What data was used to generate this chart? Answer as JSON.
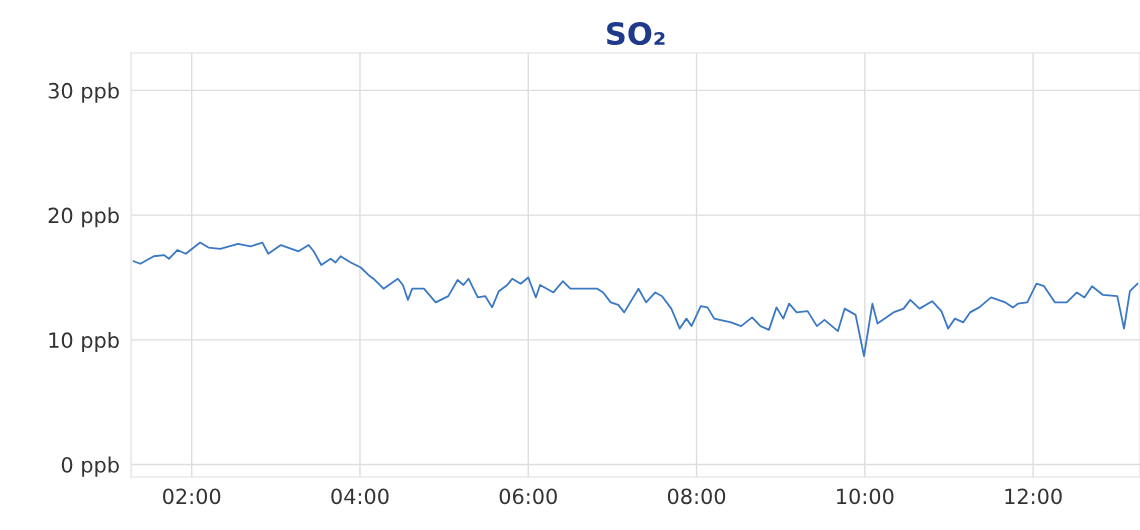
{
  "chart_data": {
    "type": "line",
    "title": "SO₂",
    "x": [
      1.31,
      1.39,
      1.55,
      1.67,
      1.73,
      1.83,
      1.93,
      2.1,
      2.2,
      2.34,
      2.55,
      2.7,
      2.84,
      2.91,
      3.06,
      3.27,
      3.39,
      3.45,
      3.54,
      3.65,
      3.71,
      3.77,
      3.89,
      4.01,
      4.1,
      4.16,
      4.28,
      4.45,
      4.51,
      4.57,
      4.62,
      4.76,
      4.9,
      5.05,
      5.16,
      5.23,
      5.29,
      5.4,
      5.49,
      5.57,
      5.65,
      5.75,
      5.81,
      5.91,
      6.0,
      6.09,
      6.14,
      6.3,
      6.41,
      6.5,
      6.66,
      6.82,
      6.89,
      6.98,
      7.07,
      7.14,
      7.31,
      7.4,
      7.51,
      7.59,
      7.7,
      7.8,
      7.88,
      7.94,
      8.05,
      8.13,
      8.21,
      8.41,
      8.53,
      8.66,
      8.76,
      8.86,
      8.95,
      9.03,
      9.1,
      9.19,
      9.32,
      9.43,
      9.52,
      9.68,
      9.76,
      9.89,
      9.99,
      10.09,
      10.15,
      10.34,
      10.46,
      10.54,
      10.65,
      10.8,
      10.91,
      10.99,
      11.07,
      11.17,
      11.25,
      11.36,
      11.5,
      11.67,
      11.76,
      11.82,
      11.93,
      12.04,
      12.13,
      12.26,
      12.4,
      12.52,
      12.61,
      12.7,
      12.83,
      13.0,
      13.08,
      13.15,
      13.24
    ],
    "series": [
      {
        "color": "#3a78c4",
        "values": [
          16.3,
          16.1,
          16.7,
          16.8,
          16.5,
          17.2,
          16.9,
          17.8,
          17.4,
          17.3,
          17.7,
          17.5,
          17.8,
          16.9,
          17.6,
          17.1,
          17.6,
          17.1,
          16.0,
          16.5,
          16.2,
          16.7,
          16.2,
          15.8,
          15.2,
          14.9,
          14.1,
          14.9,
          14.4,
          13.2,
          14.1,
          14.1,
          13.0,
          13.5,
          14.8,
          14.4,
          14.9,
          13.4,
          13.5,
          12.6,
          13.9,
          14.4,
          14.9,
          14.5,
          15.0,
          13.4,
          14.4,
          13.8,
          14.7,
          14.1,
          14.1,
          14.1,
          13.8,
          13.0,
          12.8,
          12.2,
          14.1,
          13.0,
          13.8,
          13.5,
          12.5,
          10.9,
          11.7,
          11.1,
          12.7,
          12.6,
          11.7,
          11.4,
          11.1,
          11.8,
          11.1,
          10.8,
          12.6,
          11.7,
          12.9,
          12.2,
          12.3,
          11.1,
          11.6,
          10.7,
          12.5,
          12.0,
          8.7,
          12.9,
          11.3,
          12.2,
          12.5,
          13.2,
          12.5,
          13.1,
          12.3,
          10.9,
          11.7,
          11.4,
          12.2,
          12.6,
          13.4,
          13.0,
          12.6,
          12.9,
          13.0,
          14.5,
          14.3,
          13.0,
          13.0,
          13.8,
          13.4,
          14.3,
          13.6,
          13.5,
          10.9,
          13.9,
          14.5
        ]
      }
    ],
    "xlim": [
      1.28,
      13.27
    ],
    "xticks": [
      {
        "value": 2,
        "label": "02:00"
      },
      {
        "value": 4,
        "label": "04:00"
      },
      {
        "value": 6,
        "label": "06:00"
      },
      {
        "value": 8,
        "label": "08:00"
      },
      {
        "value": 10,
        "label": "10:00"
      },
      {
        "value": 12,
        "label": "12:00"
      }
    ],
    "ylim": [
      -1,
      33
    ],
    "yticks": [
      {
        "value": 0,
        "label": "0 ppb"
      },
      {
        "value": 10,
        "label": "10 ppb"
      },
      {
        "value": 20,
        "label": "20 ppb"
      },
      {
        "value": 30,
        "label": "30 ppb"
      }
    ],
    "grid": true
  }
}
